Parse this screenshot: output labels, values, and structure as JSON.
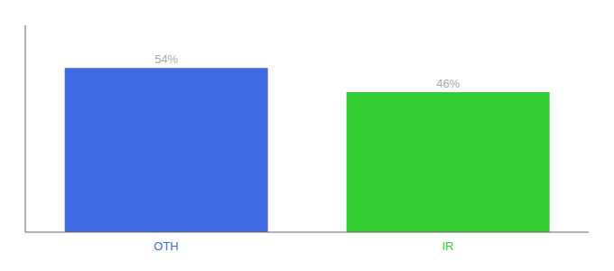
{
  "chart_data": {
    "type": "bar",
    "categories": [
      "OTH",
      "IR"
    ],
    "values": [
      54,
      46
    ],
    "value_labels": [
      "54%",
      "46%"
    ],
    "colors": [
      "#4169e1",
      "#33cc33"
    ],
    "ylim": [
      0,
      68
    ],
    "yticks": [],
    "grid": false,
    "data_labels": true,
    "tick_labels": "x"
  }
}
